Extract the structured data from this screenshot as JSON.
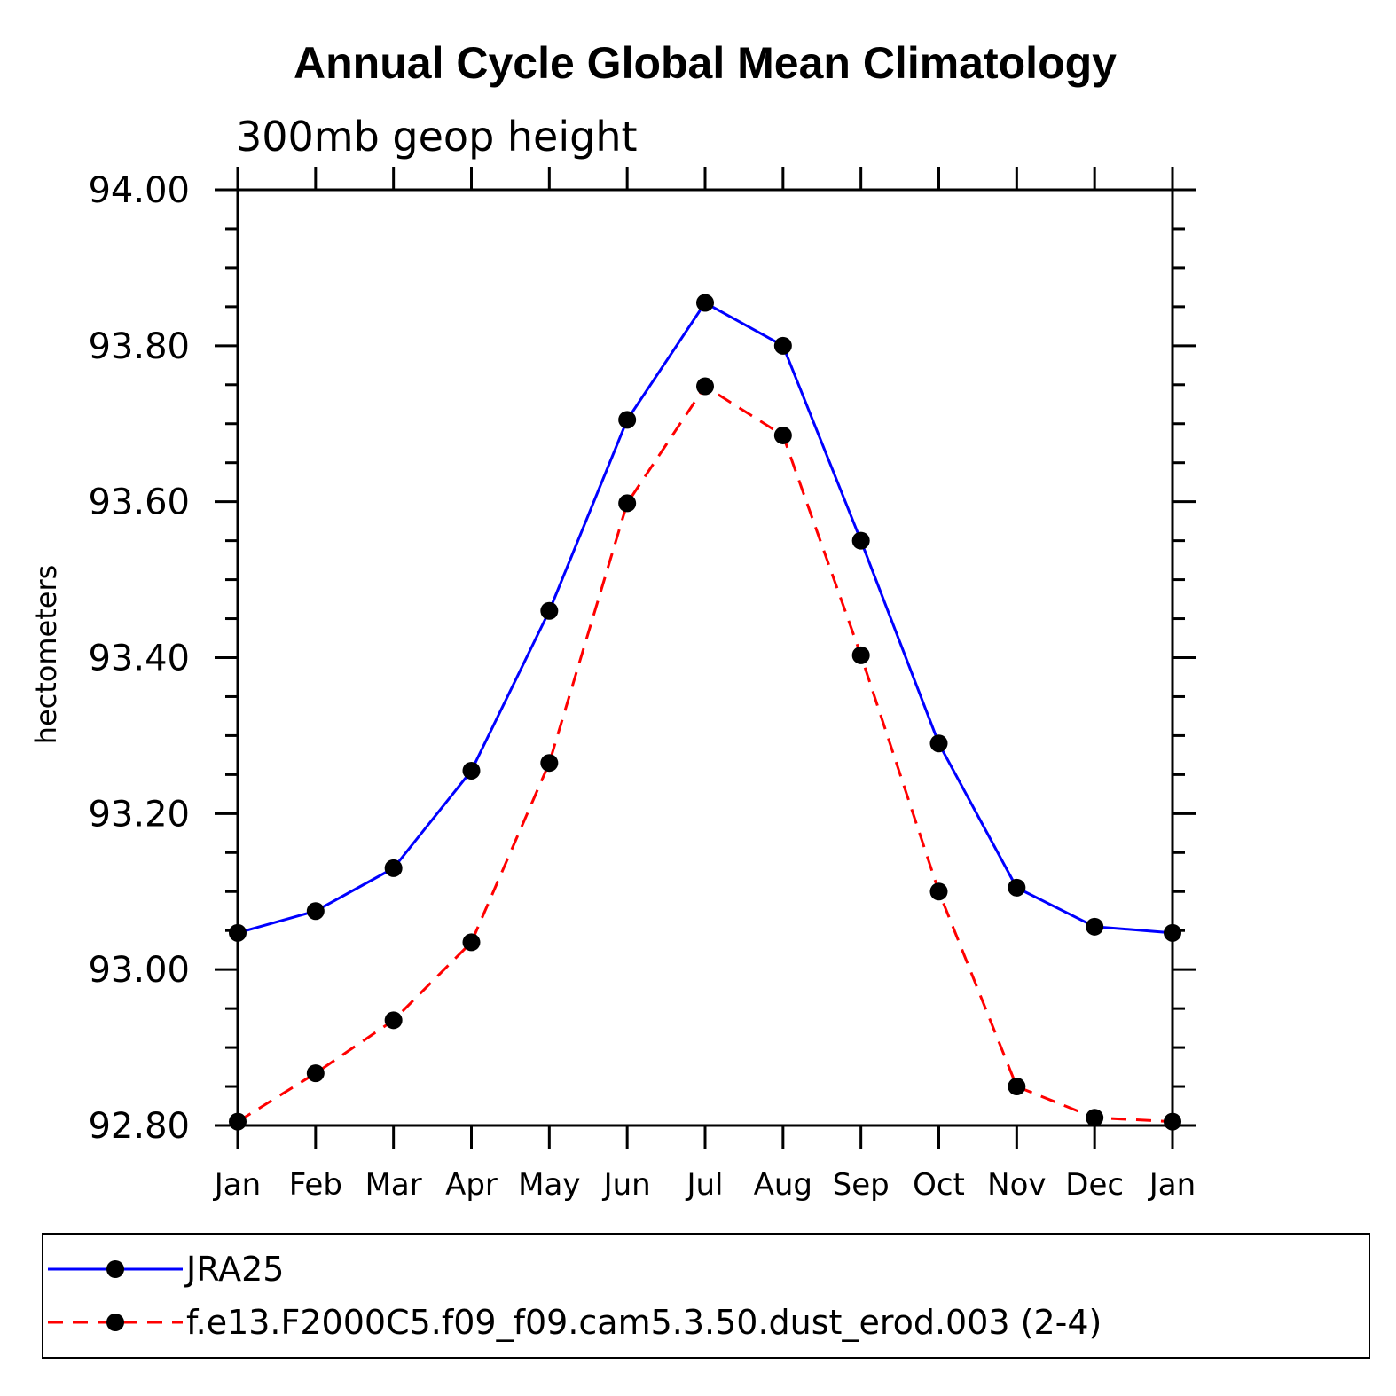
{
  "chart_data": {
    "type": "line",
    "title": "Annual Cycle Global Mean Climatology",
    "subtitle": "300mb geop height",
    "xlabel": "",
    "ylabel": "hectometers",
    "ylim": [
      92.8,
      94.0
    ],
    "y_major_step": 0.2,
    "y_minor_step": 0.05,
    "yticks": [
      "92.80",
      "93.00",
      "93.20",
      "93.40",
      "93.60",
      "93.80",
      "94.00"
    ],
    "categories": [
      "Jan",
      "Feb",
      "Mar",
      "Apr",
      "May",
      "Jun",
      "Jul",
      "Aug",
      "Sep",
      "Oct",
      "Nov",
      "Dec",
      "Jan"
    ],
    "series": [
      {
        "name": "JRA25",
        "color": "#0000ff",
        "dash": "solid",
        "values": [
          93.047,
          93.075,
          93.13,
          93.255,
          93.46,
          93.705,
          93.855,
          93.8,
          93.55,
          93.29,
          93.105,
          93.055,
          93.047
        ]
      },
      {
        "name": "f.e13.F2000C5.f09_f09.cam5.3.50.dust_erod.003 (2-4)",
        "color": "#ff0000",
        "dash": "dashed",
        "values": [
          92.805,
          92.867,
          92.935,
          93.035,
          93.265,
          93.598,
          93.748,
          93.685,
          93.403,
          93.1,
          92.85,
          92.81,
          92.805
        ]
      }
    ],
    "legend_position": "bottom",
    "grid": false
  }
}
